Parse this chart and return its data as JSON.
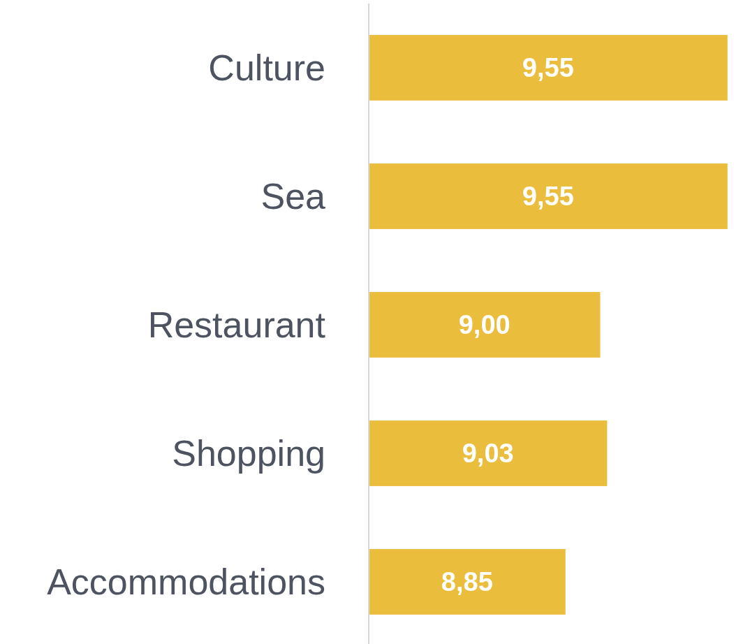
{
  "chart_data": {
    "type": "bar",
    "orientation": "horizontal",
    "categories": [
      "Culture",
      "Sea",
      "Restaurant",
      "Shopping",
      "Accommodations"
    ],
    "values": [
      9.55,
      9.55,
      9.0,
      9.03,
      8.85
    ],
    "value_labels": [
      "9,55",
      "9,55",
      "9,00",
      "9,03",
      "8,85"
    ],
    "color": "#ebbd3c",
    "xlim": [
      8,
      9.56
    ],
    "tick_labels": "y"
  }
}
